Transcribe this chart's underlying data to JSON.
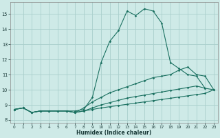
{
  "xlabel": "Humidex (Indice chaleur)",
  "ylabel": "",
  "xlim": [
    -0.5,
    23.5
  ],
  "ylim": [
    7.8,
    15.8
  ],
  "yticks": [
    8,
    9,
    10,
    11,
    12,
    13,
    14,
    15
  ],
  "xticks": [
    0,
    1,
    2,
    3,
    4,
    5,
    6,
    7,
    8,
    9,
    10,
    11,
    12,
    13,
    14,
    15,
    16,
    17,
    18,
    19,
    20,
    21,
    22,
    23
  ],
  "background_color": "#ceeae7",
  "grid_color": "#aacfcc",
  "line_color": "#1a7060",
  "lines": [
    {
      "x": [
        0,
        1,
        2,
        3,
        4,
        5,
        6,
        7,
        8,
        9,
        10,
        11,
        12,
        13,
        14,
        15,
        16,
        17,
        18,
        19,
        20,
        21,
        22
      ],
      "y": [
        8.7,
        8.8,
        8.5,
        8.6,
        8.6,
        8.6,
        8.6,
        8.6,
        8.7,
        9.5,
        11.8,
        13.2,
        13.9,
        15.2,
        14.9,
        15.35,
        15.2,
        14.4,
        11.8,
        11.4,
        11.0,
        10.9,
        10.1
      ]
    },
    {
      "x": [
        0,
        1,
        2,
        3,
        4,
        5,
        6,
        7,
        8,
        9,
        10,
        11,
        12,
        13,
        14,
        15,
        16,
        17,
        18,
        19,
        20,
        21,
        22,
        23
      ],
      "y": [
        8.7,
        8.8,
        8.5,
        8.6,
        8.6,
        8.6,
        8.6,
        8.5,
        8.8,
        9.2,
        9.5,
        9.8,
        10.0,
        10.2,
        10.4,
        10.6,
        10.8,
        10.9,
        11.0,
        11.3,
        11.5,
        11.0,
        10.9,
        10.0
      ]
    },
    {
      "x": [
        0,
        1,
        2,
        3,
        4,
        5,
        6,
        7,
        8,
        9,
        10,
        11,
        12,
        13,
        14,
        15,
        16,
        17,
        18,
        19,
        20,
        21,
        22,
        23
      ],
      "y": [
        8.7,
        8.8,
        8.5,
        8.6,
        8.6,
        8.6,
        8.6,
        8.5,
        8.6,
        8.8,
        9.0,
        9.15,
        9.3,
        9.45,
        9.55,
        9.65,
        9.75,
        9.85,
        9.95,
        10.05,
        10.15,
        10.25,
        10.1,
        10.0
      ]
    },
    {
      "x": [
        0,
        1,
        2,
        3,
        4,
        5,
        6,
        7,
        8,
        9,
        10,
        11,
        12,
        13,
        14,
        15,
        16,
        17,
        18,
        19,
        20,
        21,
        22,
        23
      ],
      "y": [
        8.7,
        8.8,
        8.5,
        8.6,
        8.6,
        8.6,
        8.6,
        8.5,
        8.6,
        8.7,
        8.8,
        8.88,
        8.96,
        9.04,
        9.12,
        9.2,
        9.28,
        9.36,
        9.44,
        9.52,
        9.6,
        9.68,
        9.76,
        10.0
      ]
    }
  ]
}
